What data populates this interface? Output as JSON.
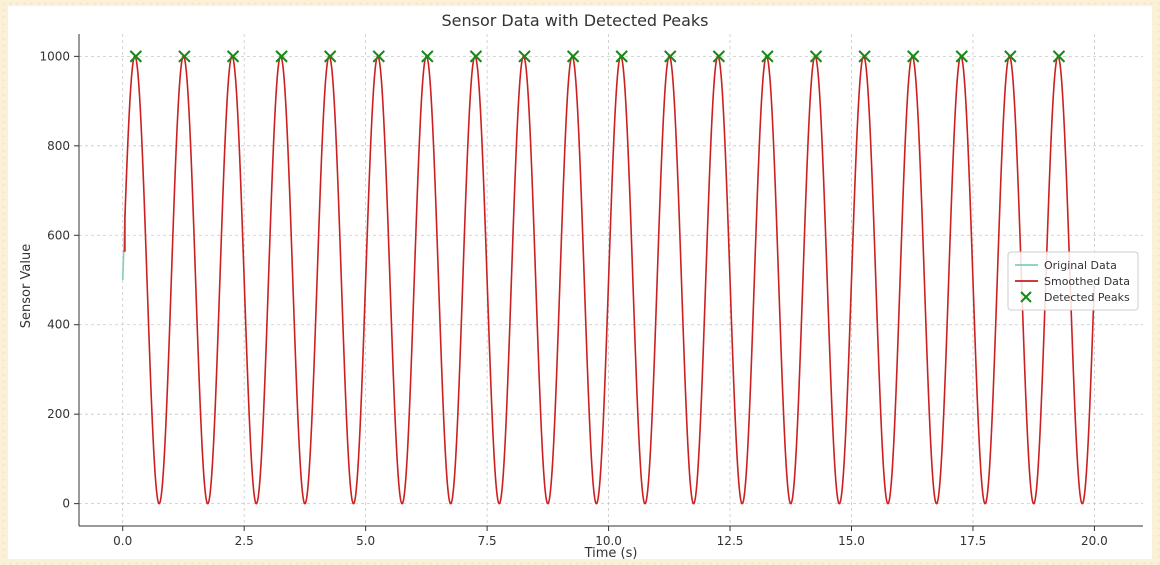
{
  "chart_data": {
    "type": "line",
    "title": "Sensor Data with Detected Peaks",
    "xlabel": "Time (s)",
    "ylabel": "Sensor Value",
    "xlim": [
      -0.9,
      21.0
    ],
    "ylim": [
      -50,
      1050
    ],
    "xticks": [
      0.0,
      2.5,
      5.0,
      7.5,
      10.0,
      12.5,
      15.0,
      17.5,
      20.0
    ],
    "xtick_labels": [
      "0.0",
      "2.5",
      "5.0",
      "7.5",
      "10.0",
      "12.5",
      "15.0",
      "17.5",
      "20.0"
    ],
    "yticks": [
      0,
      200,
      400,
      600,
      800,
      1000
    ],
    "ytick_labels": [
      "0",
      "200",
      "400",
      "600",
      "800",
      "1000"
    ],
    "grid": true,
    "legend_position": "center-right",
    "series": [
      {
        "name": "Original Data",
        "kind": "line",
        "color": "#7fcfb6",
        "formula": "500 + 500 * sin(2*pi*t)",
        "t_range": [
          0,
          20
        ],
        "note_shown": "visible only at the very start (t≈0, value≈500) under the smoothed curve"
      },
      {
        "name": "Smoothed Data",
        "kind": "line",
        "color": "#cc1f1f",
        "start_value": 565,
        "formula": "500 + 500 * sin(2*pi*t)",
        "t_range": [
          0.02,
          20
        ]
      },
      {
        "name": "Detected Peaks",
        "kind": "scatter",
        "marker": "x",
        "color": "#168a16",
        "x": [
          0.27,
          1.27,
          2.27,
          3.27,
          4.27,
          5.27,
          6.27,
          7.27,
          8.27,
          9.27,
          10.27,
          11.27,
          12.27,
          13.27,
          14.27,
          15.27,
          16.27,
          17.27,
          18.27,
          19.27
        ],
        "y": [
          1000,
          1000,
          1000,
          1000,
          1000,
          1000,
          1000,
          1000,
          1000,
          1000,
          1000,
          1000,
          1000,
          1000,
          1000,
          1000,
          1000,
          1000,
          1000,
          1000
        ]
      }
    ]
  }
}
